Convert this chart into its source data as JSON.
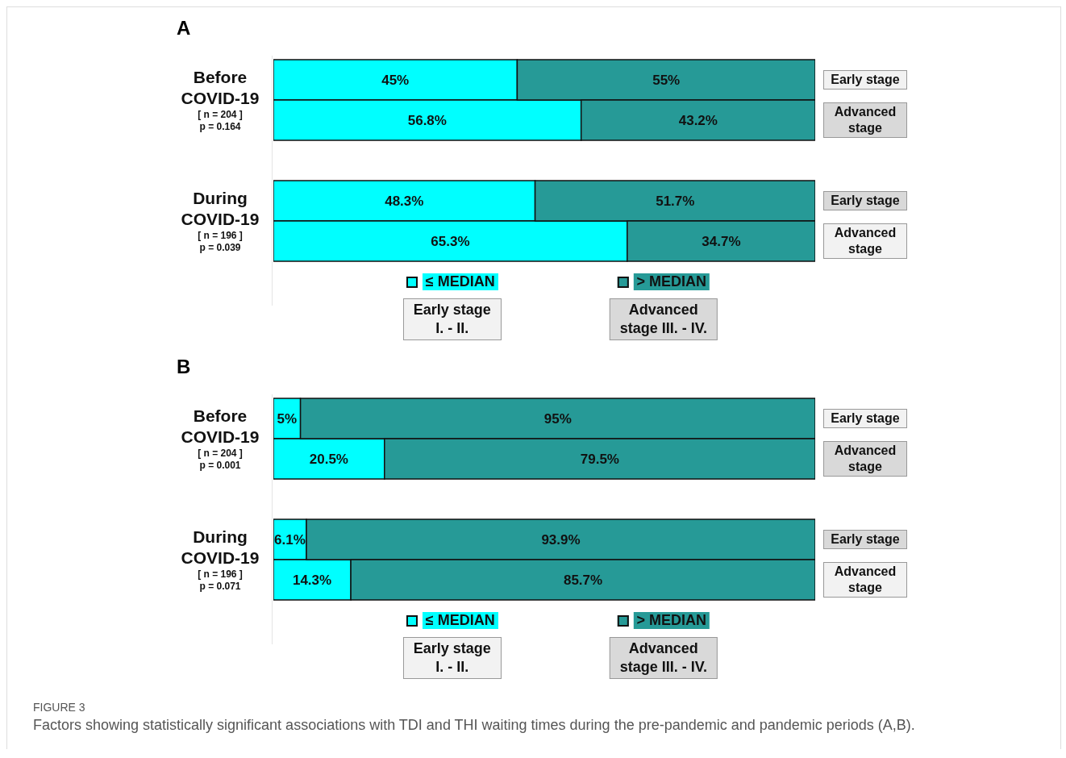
{
  "chart_data": [
    {
      "type": "bar",
      "title": "A",
      "orientation": "horizontal",
      "stacked": true,
      "legend": "bottom",
      "categories": [
        "Early stage",
        "Advanced stage",
        null,
        "Early stage",
        "Advanced stage"
      ],
      "series": [
        {
          "name": "≤ MEDIAN",
          "color": "#00ffff",
          "values": [
            45,
            56.8,
            null,
            48.3,
            65.3
          ],
          "value_labels": [
            "45%",
            "56.8%",
            null,
            "48.3%",
            "65.3%"
          ]
        },
        {
          "name": "> MEDIAN",
          "color": "#269a97",
          "values": [
            55,
            43.2,
            null,
            51.7,
            34.7
          ],
          "value_labels": [
            "55%",
            "43.2%",
            null,
            "51.7%",
            "34.7%"
          ]
        }
      ],
      "annotations": [
        "Before\nCOVID-19\n[ n = 204 ]\np = 0.164",
        "During\nCOVID-19\n[ n = 196 ]\np = 0.039",
        "Early stage\nI. - II.",
        "Advanced\nstage III. - IV."
      ]
    },
    {
      "type": "bar",
      "title": "B",
      "orientation": "horizontal",
      "stacked": true,
      "legend": "bottom",
      "categories": [
        "Early stage",
        "Advanced stage",
        null,
        "Early stage",
        "Advanced stage"
      ],
      "series": [
        {
          "name": "≤ MEDIAN",
          "color": "#00ffff",
          "values": [
            5,
            20.5,
            null,
            6.1,
            14.3
          ],
          "value_labels": [
            "5%",
            "20.5%",
            null,
            "6.1%",
            "14.3%"
          ]
        },
        {
          "name": "> MEDIAN",
          "color": "#269a97",
          "values": [
            95,
            79.5,
            null,
            93.9,
            85.7
          ],
          "value_labels": [
            "95%",
            "79.5%",
            null,
            "93.9%",
            "85.7%"
          ]
        }
      ],
      "annotations": [
        "Before\nCOVID-19\n[ n = 204 ]\np = 0.001",
        "During\nCOVID-19\n[ n = 196 ]\np = 0.071",
        "Early stage\nI. - II.",
        "Advanced\nstage III. - IV.",
        "FIGURE 3",
        "Factors showing statistically significant associations with TDI and THI waiting times during the pre-pandemic and pandemic periods (A,B)."
      ]
    }
  ]
}
